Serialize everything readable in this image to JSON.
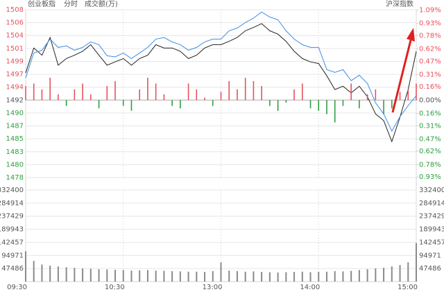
{
  "chart_data": [
    {
      "type": "line",
      "title": "创业板指",
      "subtitle": "分时",
      "right_title": "沪深指数",
      "x": [
        "09:30",
        "09:35",
        "09:40",
        "09:45",
        "09:50",
        "09:55",
        "10:00",
        "10:05",
        "10:10",
        "10:15",
        "10:20",
        "10:25",
        "10:30",
        "10:35",
        "10:40",
        "10:45",
        "10:50",
        "10:55",
        "11:00",
        "11:05",
        "11:10",
        "11:15",
        "11:20",
        "11:25",
        "11:30",
        "13:05",
        "13:10",
        "13:15",
        "13:20",
        "13:25",
        "13:30",
        "13:35",
        "13:40",
        "13:45",
        "13:50",
        "13:55",
        "14:00",
        "14:05",
        "14:10",
        "14:15",
        "14:20",
        "14:25",
        "14:30",
        "14:35",
        "14:40",
        "14:45",
        "14:50",
        "14:55",
        "15:00"
      ],
      "series": [
        {
          "color": "#222222",
          "values": [
            1496.9,
            1501.4,
            1500.1,
            1503.3,
            1498.3,
            1499.5,
            1500.1,
            1500.8,
            1502.0,
            1500.1,
            1498.3,
            1498.9,
            1499.5,
            1498.3,
            1499.5,
            1500.1,
            1502.0,
            1501.4,
            1501.4,
            1500.8,
            1499.5,
            1500.1,
            1501.4,
            1502.0,
            1502.0,
            1502.6,
            1503.3,
            1504.5,
            1505.1,
            1505.8,
            1504.5,
            1503.9,
            1502.6,
            1500.8,
            1499.5,
            1498.9,
            1498.6,
            1496.4,
            1493.9,
            1494.5,
            1493.3,
            1494.5,
            1492.6,
            1489.5,
            1488.3,
            1484.5,
            1488.9,
            1493.9,
            1500.8
          ]
        },
        {
          "color": "#3a8ee6",
          "values": [
            1496.0,
            1500.5,
            1501.0,
            1503.0,
            1501.5,
            1501.8,
            1501.0,
            1501.5,
            1502.5,
            1502.0,
            1500.0,
            1499.8,
            1500.5,
            1499.5,
            1500.5,
            1501.5,
            1503.0,
            1503.3,
            1502.5,
            1502.0,
            1501.0,
            1501.5,
            1502.5,
            1503.0,
            1503.0,
            1504.5,
            1505.0,
            1506.0,
            1506.8,
            1507.9,
            1507.0,
            1506.5,
            1504.5,
            1503.0,
            1502.0,
            1501.5,
            1501.5,
            1497.5,
            1497.0,
            1497.5,
            1495.5,
            1496.5,
            1495.0,
            1491.5,
            1489.5,
            1486.4,
            1489.0,
            1491.0,
            1492.8
          ]
        },
        {
          "type": "bar",
          "axis": "y2",
          "up_color": "#e8505b",
          "down_color": "#2e9e3e",
          "values": [
            0.17,
            0.2,
            0.13,
            0.27,
            0.07,
            -0.07,
            0.13,
            0.2,
            0.07,
            -0.1,
            0.17,
            0.23,
            -0.07,
            -0.13,
            0.13,
            0.27,
            0.2,
            0.07,
            -0.07,
            -0.1,
            0.2,
            0.13,
            0.03,
            -0.07,
            0.1,
            0.23,
            0.13,
            0.27,
            0.23,
            0.17,
            -0.07,
            -0.13,
            -0.03,
            0.13,
            0.2,
            -0.1,
            -0.13,
            -0.17,
            -0.27,
            -0.07,
            0.2,
            -0.1,
            0.07,
            0.13,
            -0.17,
            -0.1,
            0.1,
            0.13,
            0.2
          ]
        }
      ],
      "ylim": [
        1478.02,
        1508.31
      ],
      "yticks": [
        {
          "value": 1508.31,
          "label": "1508"
        },
        {
          "value": 1505.98,
          "label": "1506"
        },
        {
          "value": 1503.65,
          "label": "1504"
        },
        {
          "value": 1501.32,
          "label": "1501"
        },
        {
          "value": 1498.99,
          "label": "1499"
        },
        {
          "value": 1496.66,
          "label": "1497"
        },
        {
          "value": 1494.33,
          "label": "1494"
        },
        {
          "value": 1492.0,
          "label": "1492"
        },
        {
          "value": 1489.67,
          "label": "1490"
        },
        {
          "value": 1487.34,
          "label": "1487"
        },
        {
          "value": 1485.01,
          "label": "1485"
        },
        {
          "value": 1482.68,
          "label": "1483"
        },
        {
          "value": 1480.35,
          "label": "1480"
        },
        {
          "value": 1478.02,
          "label": "1478"
        }
      ],
      "y2lim": [
        -0.937,
        1.093
      ],
      "y2ticks": [
        {
          "value": 1.09,
          "label": "1.09%"
        },
        {
          "value": 0.93,
          "label": "0.93%"
        },
        {
          "value": 0.78,
          "label": "0.78%"
        },
        {
          "value": 0.62,
          "label": "0.62%"
        },
        {
          "value": 0.47,
          "label": "0.47%"
        },
        {
          "value": 0.31,
          "label": "0.31%"
        },
        {
          "value": 0.16,
          "label": "0.16%"
        },
        {
          "value": 0.0,
          "label": "0.00%"
        },
        {
          "value": -0.16,
          "label": "0.16%"
        },
        {
          "value": -0.31,
          "label": "0.31%"
        },
        {
          "value": -0.47,
          "label": "0.47%"
        },
        {
          "value": -0.62,
          "label": "0.62%"
        },
        {
          "value": -0.78,
          "label": "0.78%"
        },
        {
          "value": -0.93,
          "label": "0.93%"
        }
      ],
      "grid": true
    },
    {
      "type": "bar",
      "title": "成交额(万)",
      "color": "#8a8a8a",
      "values": [
        110000,
        75000,
        62000,
        58000,
        55000,
        52000,
        50000,
        48000,
        47000,
        45000,
        44000,
        43000,
        42000,
        40000,
        41000,
        42000,
        40000,
        39000,
        38000,
        37000,
        36000,
        36000,
        35000,
        38000,
        70000,
        40000,
        38000,
        36000,
        37000,
        35000,
        34000,
        33000,
        34000,
        35000,
        36000,
        34000,
        35000,
        36000,
        38000,
        37000,
        39000,
        42000,
        45000,
        48000,
        50000,
        55000,
        60000,
        70000,
        140000
      ],
      "ylim": [
        0,
        332400
      ],
      "yticks": [
        332400,
        284914,
        237429,
        189943,
        142457,
        94971,
        47486
      ],
      "xticks": [
        "09:30",
        "10:30",
        "13:00",
        "14:00",
        "15:00"
      ],
      "grid": true
    }
  ]
}
